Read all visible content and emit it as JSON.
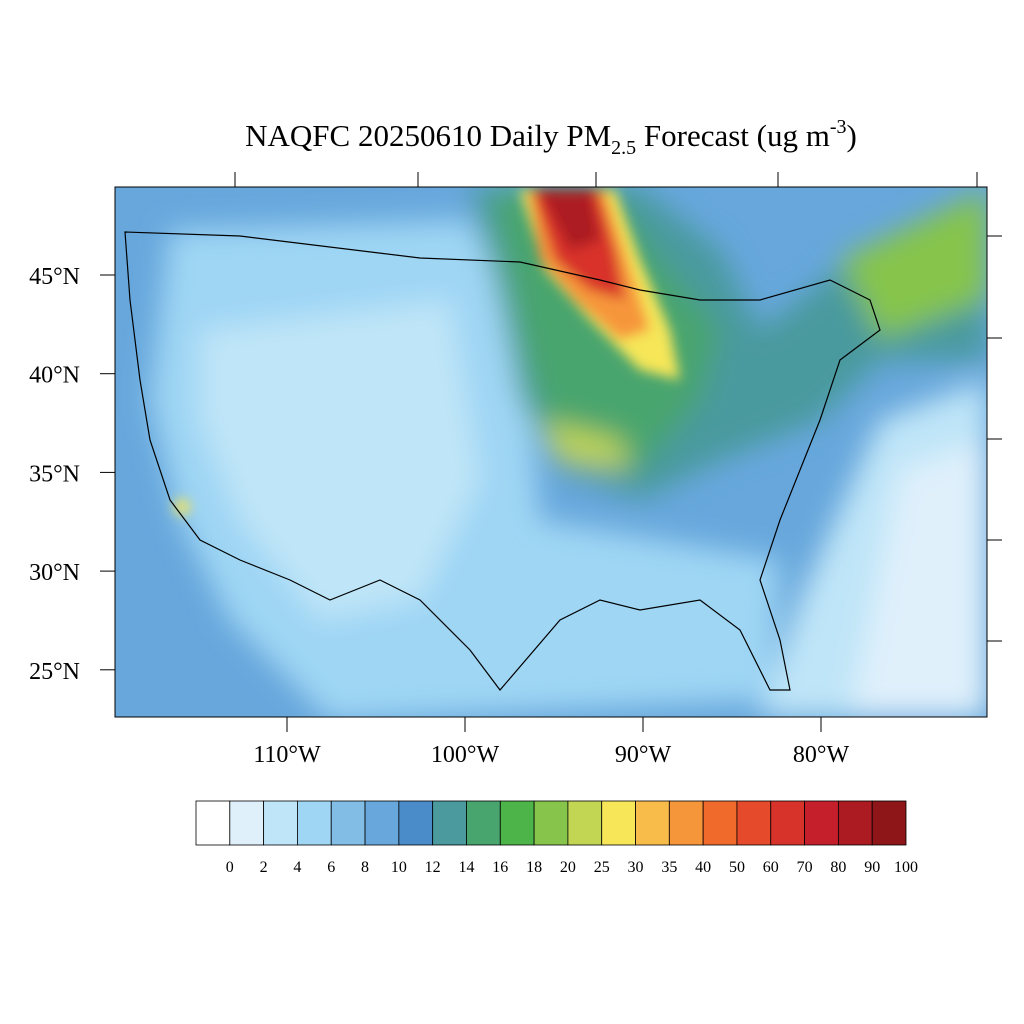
{
  "title": {
    "main": "NAQFC 20250610 Daily PM",
    "subscript": "2.5",
    "rest": " Forecast (ug m",
    "superscript": "-3",
    "close": ")"
  },
  "map": {
    "lat_ticks": [
      {
        "value": 45,
        "label": "45°N"
      },
      {
        "value": 40,
        "label": "40°N"
      },
      {
        "value": 35,
        "label": "35°N"
      },
      {
        "value": 30,
        "label": "30°N"
      },
      {
        "value": 25,
        "label": "25°N"
      }
    ],
    "lon_ticks": [
      {
        "value": -110,
        "label": "110°W"
      },
      {
        "value": -100,
        "label": "100°W"
      },
      {
        "value": -90,
        "label": "90°W"
      },
      {
        "value": -80,
        "label": "80°W"
      }
    ]
  },
  "colorbar": {
    "levels": [
      0,
      2,
      4,
      6,
      8,
      10,
      12,
      14,
      16,
      18,
      20,
      25,
      30,
      35,
      40,
      50,
      60,
      70,
      80,
      90,
      100
    ],
    "colors": [
      "#ffffff",
      "#dff0fb",
      "#bfe5f8",
      "#9fd6f4",
      "#82bde6",
      "#67a7dc",
      "#4a8cc9",
      "#4a9a9e",
      "#48a56e",
      "#4db449",
      "#86c44c",
      "#c3d654",
      "#f6e658",
      "#f8bc4a",
      "#f6963a",
      "#f06a2c",
      "#e54a2a",
      "#d8332a",
      "#c41f2a",
      "#ac1a22",
      "#8e1518"
    ]
  }
}
